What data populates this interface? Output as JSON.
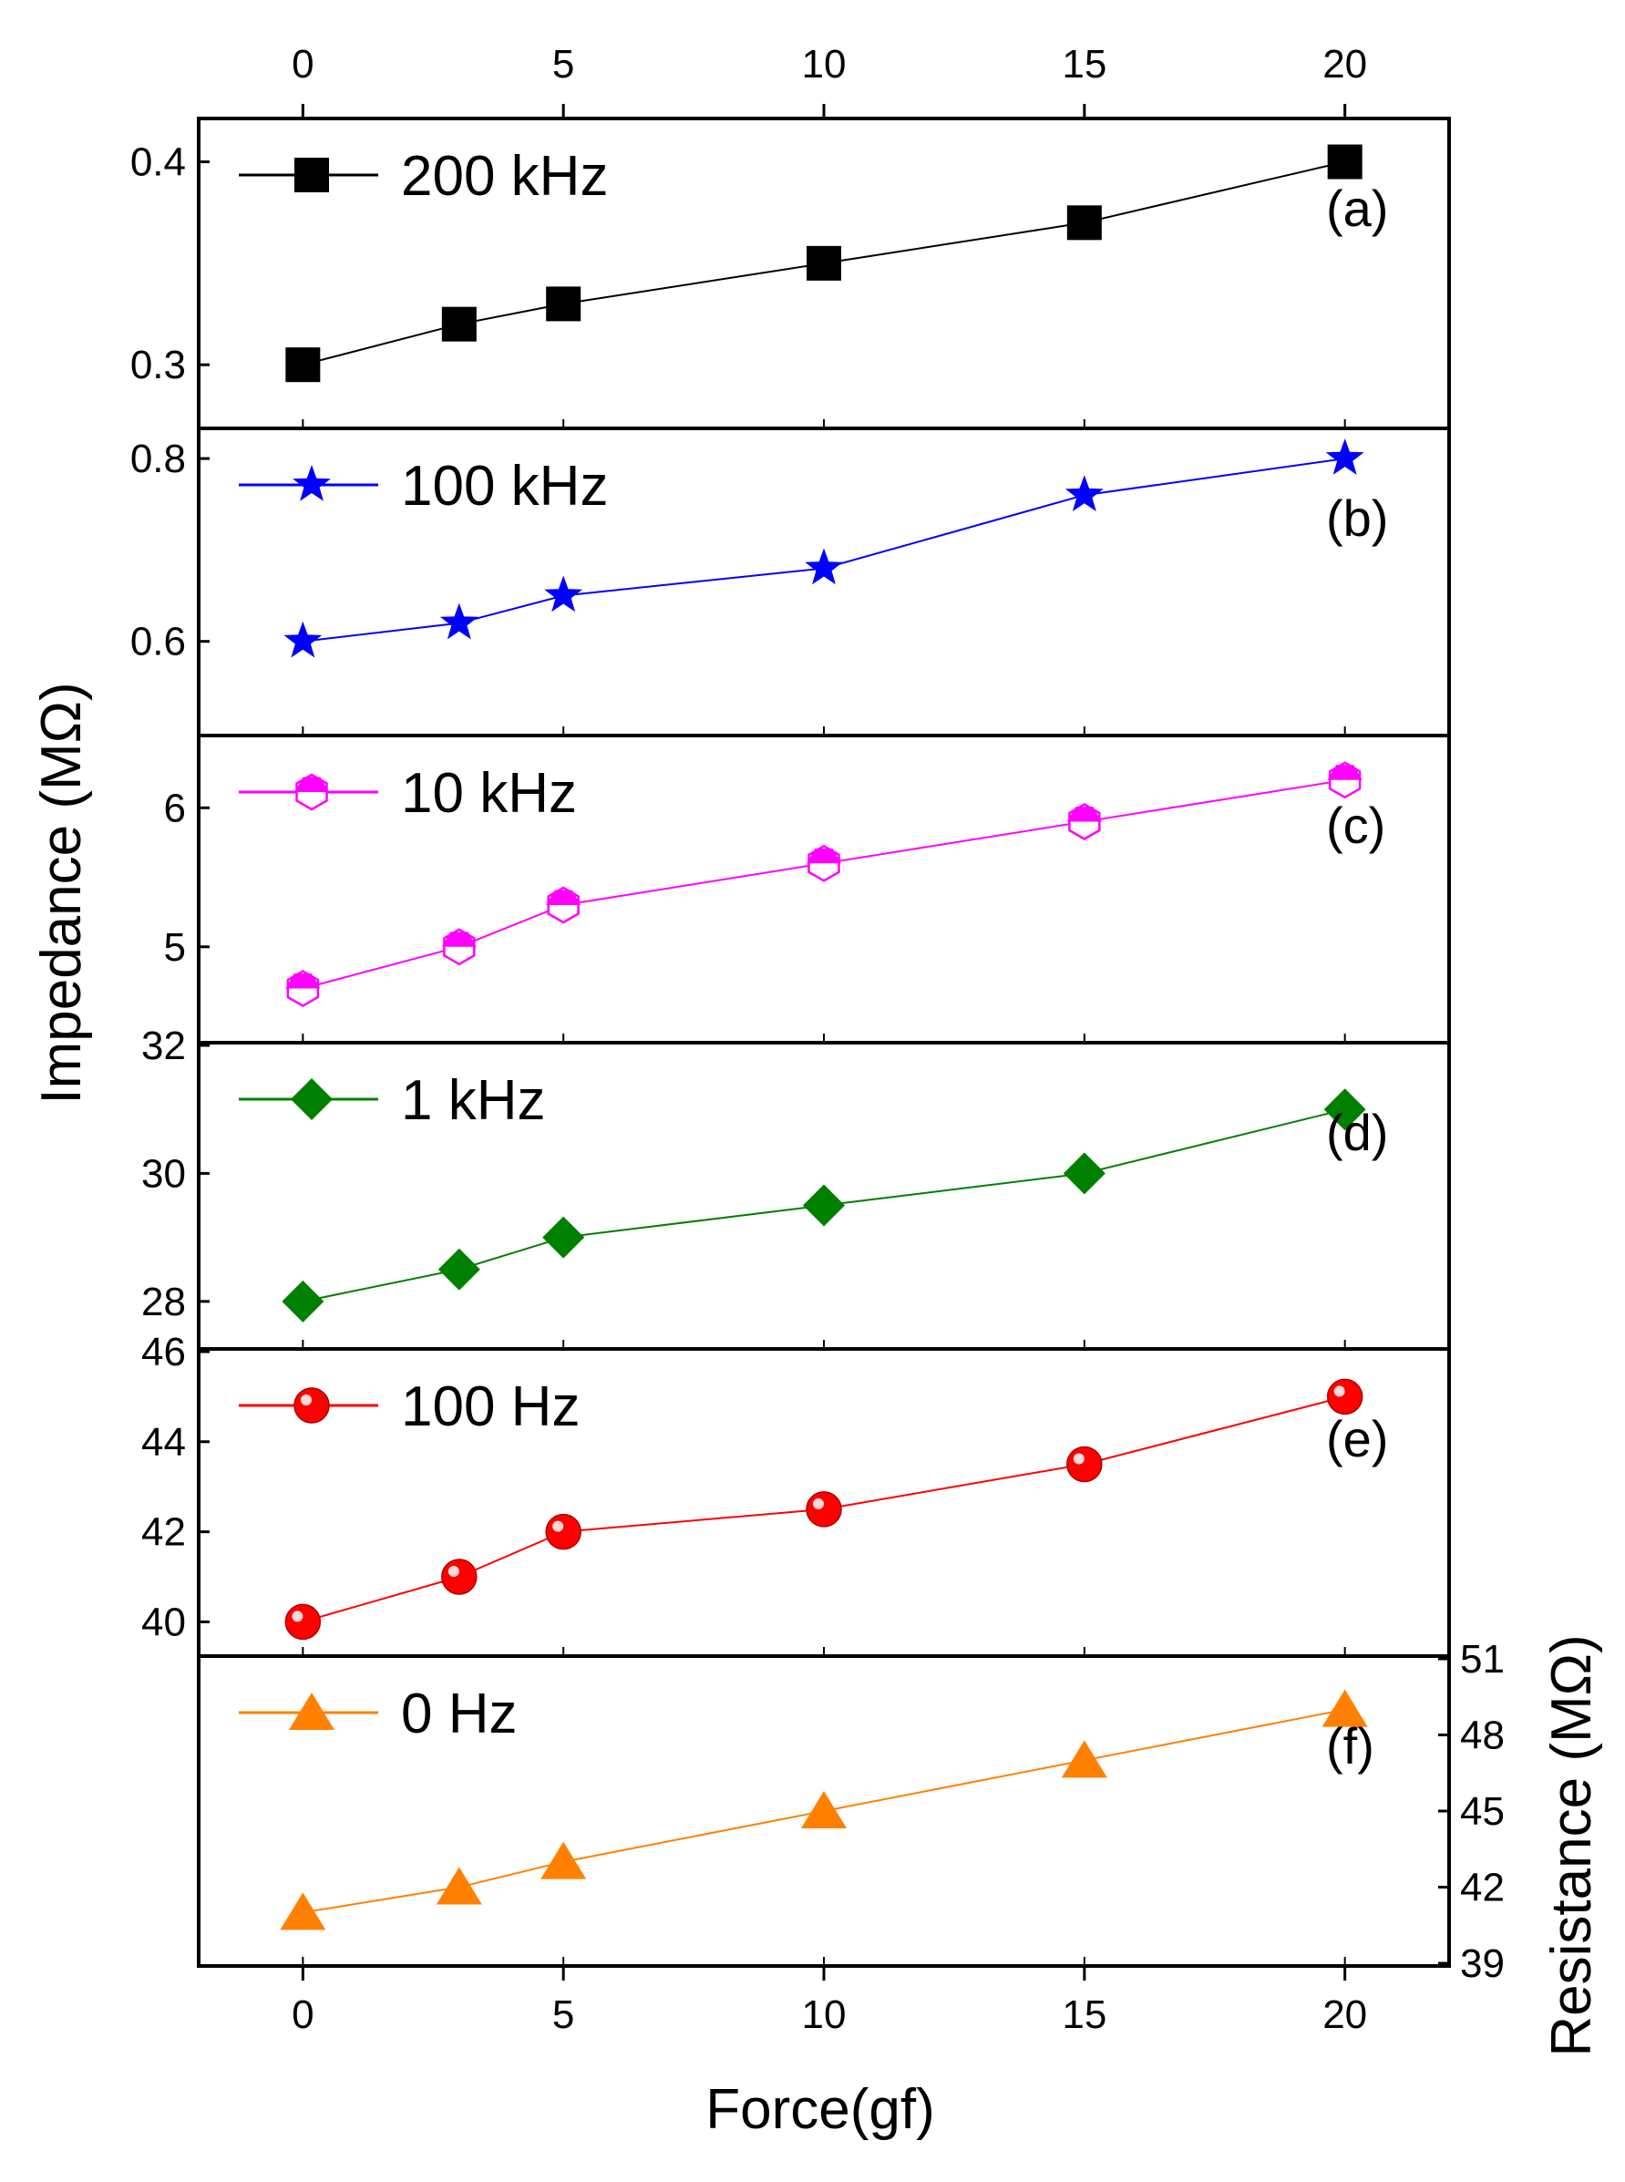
{
  "x_axis": {
    "label": "Force(gf)",
    "ticks": [
      0,
      5,
      10,
      15,
      20
    ],
    "range": [
      -2,
      22
    ]
  },
  "y_axis_left_title": "Impedance (MΩ)",
  "y_axis_right_title": "Resistance (MΩ)",
  "chart_data": [
    {
      "type": "line",
      "panel": "(a)",
      "series": [
        {
          "name": "200 kHz",
          "x": [
            0,
            3,
            5,
            10,
            15,
            20
          ],
          "y": [
            0.3,
            0.32,
            0.33,
            0.35,
            0.37,
            0.4
          ],
          "color": "#000000",
          "marker": "square"
        }
      ],
      "ylim": [
        0.27,
        0.42
      ],
      "yticks": [
        {
          "v": 0.3,
          "label": "0.3"
        },
        {
          "v": 0.4,
          "label": "0.4"
        }
      ],
      "ylabel": "Impedance (MΩ)",
      "xlabel": "Force(gf)"
    },
    {
      "type": "line",
      "panel": "(b)",
      "series": [
        {
          "name": "100 kHz",
          "x": [
            0,
            3,
            5,
            10,
            15,
            20
          ],
          "y": [
            0.6,
            0.62,
            0.65,
            0.68,
            0.76,
            0.8
          ],
          "color": "#0000ff",
          "marker": "star"
        }
      ],
      "ylim": [
        0.5,
        0.83
      ],
      "yticks": [
        {
          "v": 0.6,
          "label": "0.6"
        },
        {
          "v": 0.8,
          "label": "0.8"
        }
      ],
      "ylabel": "Impedance (MΩ)",
      "xlabel": "Force(gf)"
    },
    {
      "type": "line",
      "panel": "(c)",
      "series": [
        {
          "name": "10 kHz",
          "x": [
            0,
            3,
            5,
            10,
            15,
            20
          ],
          "y": [
            4.7,
            5.0,
            5.3,
            5.6,
            5.9,
            6.2
          ],
          "color": "#ff00ff",
          "marker": "hexagon-half"
        }
      ],
      "ylim": [
        4.33,
        6.5
      ],
      "yticks": [
        {
          "v": 5,
          "label": "5"
        },
        {
          "v": 6,
          "label": "6"
        }
      ],
      "ylabel": "Impedance (MΩ)",
      "xlabel": "Force(gf)"
    },
    {
      "type": "line",
      "panel": "(d)",
      "series": [
        {
          "name": "1 kHz",
          "x": [
            0,
            3,
            5,
            10,
            15,
            20
          ],
          "y": [
            28.0,
            28.5,
            29.0,
            29.5,
            30.0,
            31.0
          ],
          "color": "#008000",
          "marker": "diamond"
        }
      ],
      "ylim": [
        27.3,
        32
      ],
      "yticks": [
        {
          "v": 28,
          "label": "28"
        },
        {
          "v": 30,
          "label": "30"
        },
        {
          "v": 32,
          "label": "32"
        }
      ],
      "ylabel": "Impedance (MΩ)",
      "xlabel": "Force(gf)"
    },
    {
      "type": "line",
      "panel": "(e)",
      "series": [
        {
          "name": "100 Hz",
          "x": [
            0,
            3,
            5,
            10,
            15,
            20
          ],
          "y": [
            40.0,
            41.0,
            42.0,
            42.5,
            43.5,
            45.0
          ],
          "color": "#ff0000",
          "marker": "sphere"
        }
      ],
      "ylim": [
        39.3,
        46
      ],
      "yticks": [
        {
          "v": 40,
          "label": "40"
        },
        {
          "v": 42,
          "label": "42"
        },
        {
          "v": 44,
          "label": "44"
        },
        {
          "v": 46,
          "label": "46"
        }
      ],
      "ylabel": "Impedance (MΩ)",
      "xlabel": "Force(gf)"
    },
    {
      "type": "line",
      "panel": "(f)",
      "series": [
        {
          "name": "0 Hz",
          "x": [
            0,
            3,
            5,
            10,
            15,
            20
          ],
          "y": [
            41.0,
            42.0,
            43.0,
            45.0,
            47.0,
            49.0
          ],
          "color": "#ff8000",
          "marker": "triangle"
        }
      ],
      "ylim": [
        39,
        51
      ],
      "yticks": [
        {
          "v": 39,
          "label": "39"
        },
        {
          "v": 42,
          "label": "42"
        },
        {
          "v": 45,
          "label": "45"
        },
        {
          "v": 48,
          "label": "48"
        },
        {
          "v": 51,
          "label": "51"
        }
      ],
      "y_axis_side": "right",
      "ylabel": "Resistance (MΩ)",
      "xlabel": "Force(gf)"
    }
  ]
}
